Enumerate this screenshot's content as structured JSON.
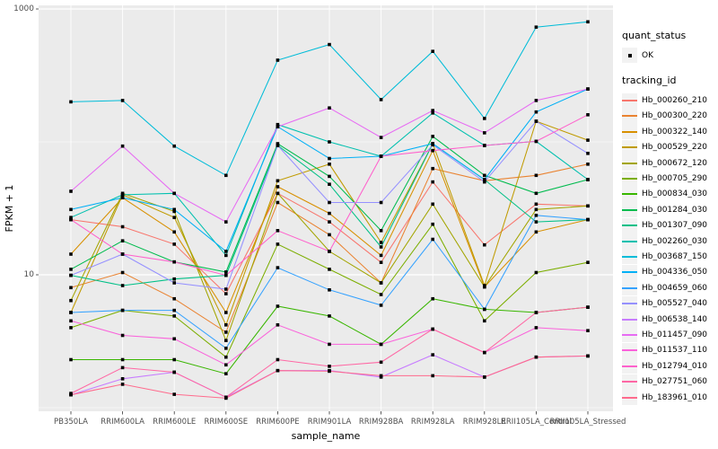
{
  "colors": {
    "panel_bg": "#ebebeb",
    "grid": "#ffffff",
    "axis_text": "#4d4d4d",
    "tick_mark": "#333333",
    "point": "#000000",
    "legend_key_bg": "#f2f2f2"
  },
  "legend": {
    "quant_status_title": "quant_status",
    "quant_status_items": [
      {
        "label": "OK",
        "symbol": "black-point"
      }
    ],
    "tracking_id_title": "tracking_id"
  },
  "chart_data": {
    "type": "line",
    "title": "",
    "xlabel": "sample_name",
    "ylabel": "FPKM + 1",
    "y_scale": "log10",
    "ylim": [
      1,
      1000
    ],
    "y_tick_values": [
      10,
      1000
    ],
    "y_tick_labels": [
      "10",
      "1000"
    ],
    "y_minor_values": [
      1,
      100
    ],
    "grid": true,
    "legend_position": "right",
    "point_shape": "small-black-square",
    "categories": [
      "PB350LA",
      "RRIM600LA",
      "RRIM600LE",
      "RRIM600SE",
      "RRIM600PE",
      "RRIM901LA",
      "RRIM928BA",
      "RRIM928LA",
      "RRIM928LE",
      "RRII105LA_Control",
      "RRII105LA_Stressed"
    ],
    "series": [
      {
        "name": "Hb_000260_210",
        "color": "#F8766D",
        "values": [
          26,
          23,
          17,
          7.2,
          41,
          25,
          12.4,
          50,
          16.8,
          34,
          33
        ]
      },
      {
        "name": "Hb_000300_220",
        "color": "#EA8331",
        "values": [
          8.0,
          10.4,
          6.6,
          3.7,
          35,
          20,
          8.7,
          63,
          51,
          56,
          68
        ]
      },
      {
        "name": "Hb_000322_140",
        "color": "#D89000",
        "values": [
          14.3,
          38,
          21,
          5.2,
          46,
          29,
          14,
          86,
          8.1,
          21,
          26
        ]
      },
      {
        "name": "Hb_000529_220",
        "color": "#C09B00",
        "values": [
          5.2,
          40,
          27,
          4.2,
          51,
          68,
          17.5,
          97,
          8.3,
          143,
          103
        ]
      },
      {
        "name": "Hb_000672_120",
        "color": "#A3A500",
        "values": [
          6.4,
          41,
          30,
          3.2,
          41,
          15,
          8.7,
          34,
          8.1,
          31,
          33
        ]
      },
      {
        "name": "Hb_000705_290",
        "color": "#7CAE00",
        "values": [
          4.0,
          5.4,
          4.9,
          2.4,
          17,
          11,
          7.1,
          24,
          4.5,
          10.4,
          12.4
        ]
      },
      {
        "name": "Hb_000834_030",
        "color": "#39B600",
        "values": [
          2.3,
          2.3,
          2.3,
          1.8,
          5.8,
          4.9,
          3.0,
          6.6,
          5.5,
          5.2,
          5.7
        ]
      },
      {
        "name": "Hb_001284_030",
        "color": "#00BB4E",
        "values": [
          11,
          18,
          12.5,
          10.5,
          97,
          55,
          21.5,
          110,
          56,
          41,
          52
        ]
      },
      {
        "name": "Hb_001307_090",
        "color": "#00C087",
        "values": [
          9.9,
          8.3,
          9.3,
          9.9,
          94,
          48,
          16.2,
          97,
          52,
          25,
          26
        ]
      },
      {
        "name": "Hb_002260_030",
        "color": "#00C0AF",
        "values": [
          27,
          40,
          41,
          14,
          135,
          100,
          78,
          165,
          94,
          101,
          52
        ]
      },
      {
        "name": "Hb_003687_150",
        "color": "#00BCD8",
        "values": [
          200,
          205,
          93,
          56,
          412,
          540,
          208,
          480,
          150,
          730,
          800
        ]
      },
      {
        "name": "Hb_004336_050",
        "color": "#00B0F6",
        "values": [
          31,
          38,
          31,
          15,
          130,
          75,
          78,
          97,
          52,
          168,
          250
        ]
      },
      {
        "name": "Hb_004659_060",
        "color": "#35A2FF",
        "values": [
          5.2,
          5.4,
          5.4,
          2.8,
          11.3,
          7.7,
          5.9,
          18.5,
          5.5,
          28,
          26
        ]
      },
      {
        "name": "Hb_005527_040",
        "color": "#9590FF",
        "values": [
          9.9,
          14.3,
          8.7,
          7.8,
          94,
          35,
          35,
          95,
          50,
          143,
          82
        ]
      },
      {
        "name": "Hb_006538_140",
        "color": "#C77CFF",
        "values": [
          1.25,
          1.65,
          1.85,
          1.2,
          1.9,
          1.9,
          1.7,
          2.5,
          1.7,
          2.4,
          2.45
        ]
      },
      {
        "name": "Hb_011457_090",
        "color": "#E76BF3",
        "values": [
          42.5,
          93,
          41,
          25,
          130,
          180,
          108,
          172,
          117,
          205,
          250
        ]
      },
      {
        "name": "Hb_011537_110",
        "color": "#FA62DB",
        "values": [
          4.5,
          3.5,
          3.3,
          2.1,
          4.2,
          3.0,
          3.0,
          3.9,
          2.6,
          4.0,
          3.8
        ]
      },
      {
        "name": "Hb_012794_010",
        "color": "#FF61CC",
        "values": [
          26,
          14.3,
          12.5,
          9.9,
          21.5,
          15,
          78,
          86,
          94,
          101,
          160
        ]
      },
      {
        "name": "Hb_027751_060",
        "color": "#FF67A4",
        "values": [
          1.28,
          2.0,
          1.85,
          1.2,
          2.3,
          2.05,
          2.2,
          3.9,
          2.6,
          5.2,
          5.7
        ]
      },
      {
        "name": "Hb_183961_010",
        "color": "#FF6B8D",
        "values": [
          1.25,
          1.5,
          1.26,
          1.18,
          1.9,
          1.88,
          1.74,
          1.74,
          1.7,
          2.4,
          2.45
        ]
      }
    ]
  }
}
